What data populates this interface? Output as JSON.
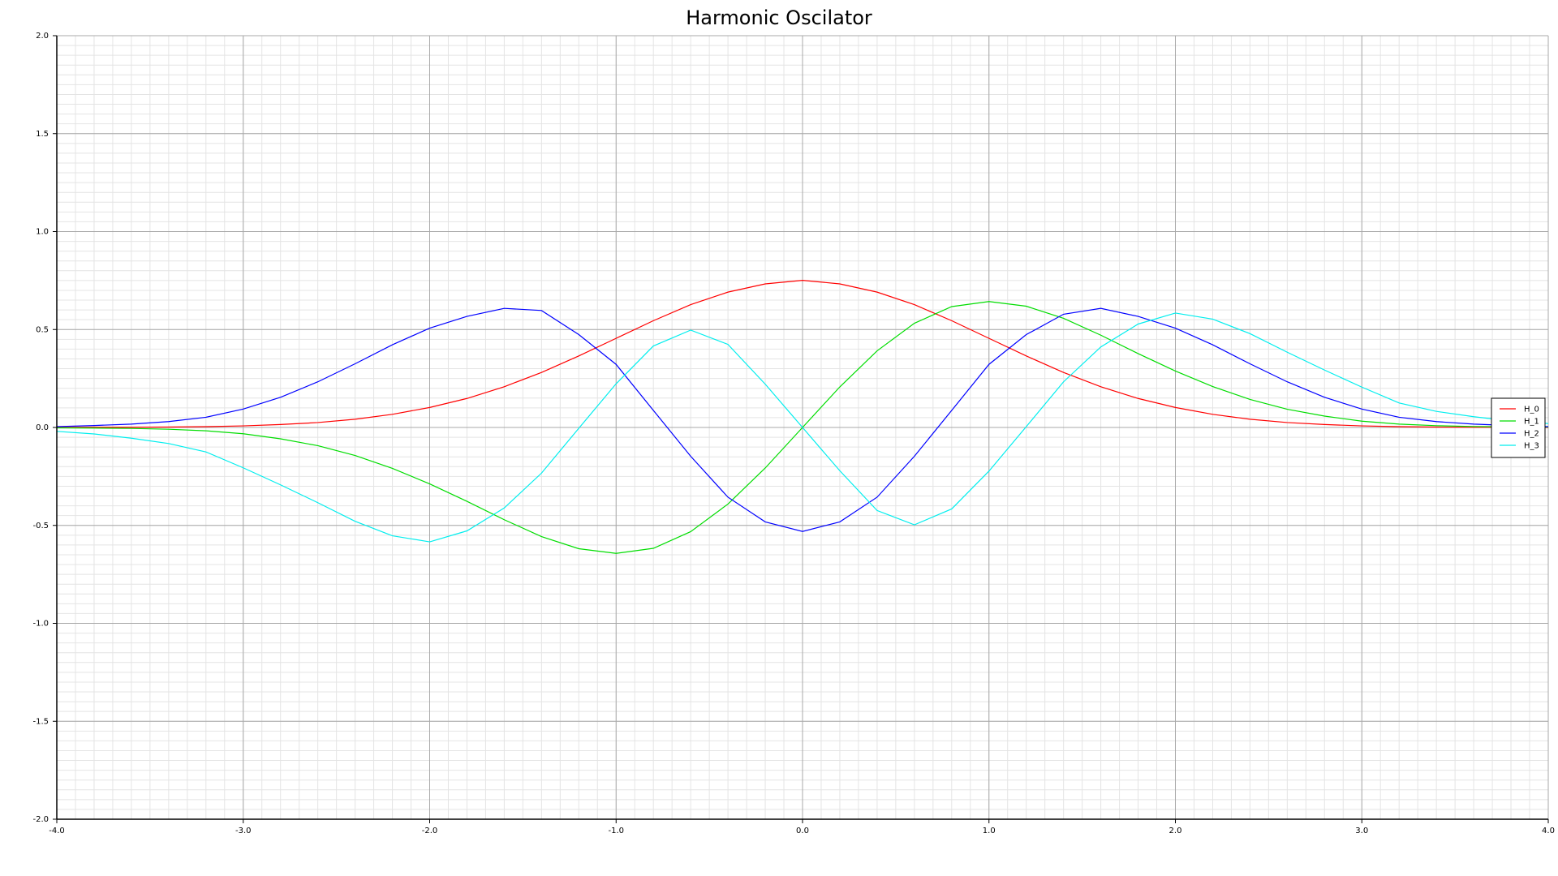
{
  "chart_data": {
    "type": "line",
    "title": "Harmonic Oscilator",
    "xlabel": "",
    "ylabel": "",
    "xlim": [
      -4.0,
      4.0
    ],
    "ylim": [
      -2.0,
      2.0
    ],
    "x_ticks": [
      "-4.0",
      "-3.0",
      "-2.0",
      "-1.0",
      "0.0",
      "1.0",
      "2.0",
      "3.0",
      "4.0"
    ],
    "y_ticks": [
      "2.0",
      "1.5",
      "1.0",
      "0.5",
      "0.0",
      "-0.5",
      "-1.0",
      "-1.5",
      "-2.0"
    ],
    "x_tick_values": [
      -4.0,
      -3.0,
      -2.0,
      -1.0,
      0.0,
      1.0,
      2.0,
      3.0,
      4.0
    ],
    "y_tick_values": [
      2.0,
      1.5,
      1.0,
      0.5,
      0.0,
      -0.5,
      -1.0,
      -1.5,
      -2.0
    ],
    "grid": true,
    "legend_position": "right",
    "x": [
      -4.0,
      -3.8,
      -3.6,
      -3.4,
      -3.2,
      -3.0,
      -2.8,
      -2.6,
      -2.4,
      -2.2,
      -2.0,
      -1.8,
      -1.6,
      -1.4,
      -1.2,
      -1.0,
      -0.8,
      -0.6,
      -0.4,
      -0.2,
      0.0,
      0.2,
      0.4,
      0.6,
      0.8,
      1.0,
      1.2,
      1.4,
      1.6,
      1.8,
      2.0,
      2.2,
      2.4,
      2.6,
      2.8,
      3.0,
      3.2,
      3.4,
      3.6,
      3.8,
      4.0
    ],
    "series": [
      {
        "name": "H_0",
        "color": "#ff0000",
        "values": [
          0.0,
          0.001,
          0.001,
          0.002,
          0.004,
          0.008,
          0.015,
          0.025,
          0.042,
          0.067,
          0.102,
          0.148,
          0.208,
          0.281,
          0.365,
          0.455,
          0.545,
          0.627,
          0.691,
          0.733,
          0.751,
          0.733,
          0.691,
          0.627,
          0.545,
          0.455,
          0.365,
          0.281,
          0.208,
          0.148,
          0.102,
          0.067,
          0.042,
          0.025,
          0.015,
          0.008,
          0.004,
          0.002,
          0.001,
          0.001,
          0.0
        ]
      },
      {
        "name": "H_1",
        "color": "#00dd00",
        "values": [
          -0.002,
          -0.003,
          -0.005,
          -0.009,
          -0.017,
          -0.032,
          -0.058,
          -0.093,
          -0.143,
          -0.209,
          -0.288,
          -0.377,
          -0.471,
          -0.557,
          -0.619,
          -0.643,
          -0.617,
          -0.532,
          -0.391,
          -0.207,
          0.0,
          0.207,
          0.391,
          0.532,
          0.617,
          0.643,
          0.619,
          0.557,
          0.471,
          0.377,
          0.288,
          0.209,
          0.143,
          0.093,
          0.058,
          0.032,
          0.017,
          0.009,
          0.005,
          0.003,
          0.002
        ]
      },
      {
        "name": "H_2",
        "color": "#0000ff",
        "values": [
          0.004,
          0.01,
          0.017,
          0.03,
          0.052,
          0.094,
          0.154,
          0.233,
          0.325,
          0.422,
          0.507,
          0.567,
          0.608,
          0.597,
          0.474,
          0.322,
          0.087,
          -0.147,
          -0.356,
          -0.482,
          -0.531,
          -0.482,
          -0.356,
          -0.147,
          0.087,
          0.322,
          0.474,
          0.578,
          0.608,
          0.567,
          0.507,
          0.422,
          0.325,
          0.233,
          0.154,
          0.094,
          0.052,
          0.03,
          0.017,
          0.01,
          0.004
        ]
      },
      {
        "name": "H_3",
        "color": "#00eeee",
        "values": [
          -0.02,
          -0.033,
          -0.055,
          -0.082,
          -0.125,
          -0.206,
          -0.293,
          -0.384,
          -0.479,
          -0.553,
          -0.584,
          -0.528,
          -0.411,
          -0.233,
          -0.004,
          0.223,
          0.416,
          0.497,
          0.424,
          0.221,
          0.0,
          -0.221,
          -0.424,
          -0.497,
          -0.416,
          -0.223,
          0.004,
          0.233,
          0.411,
          0.528,
          0.584,
          0.553,
          0.479,
          0.384,
          0.293,
          0.206,
          0.125,
          0.082,
          0.055,
          0.033,
          0.02
        ]
      }
    ]
  }
}
